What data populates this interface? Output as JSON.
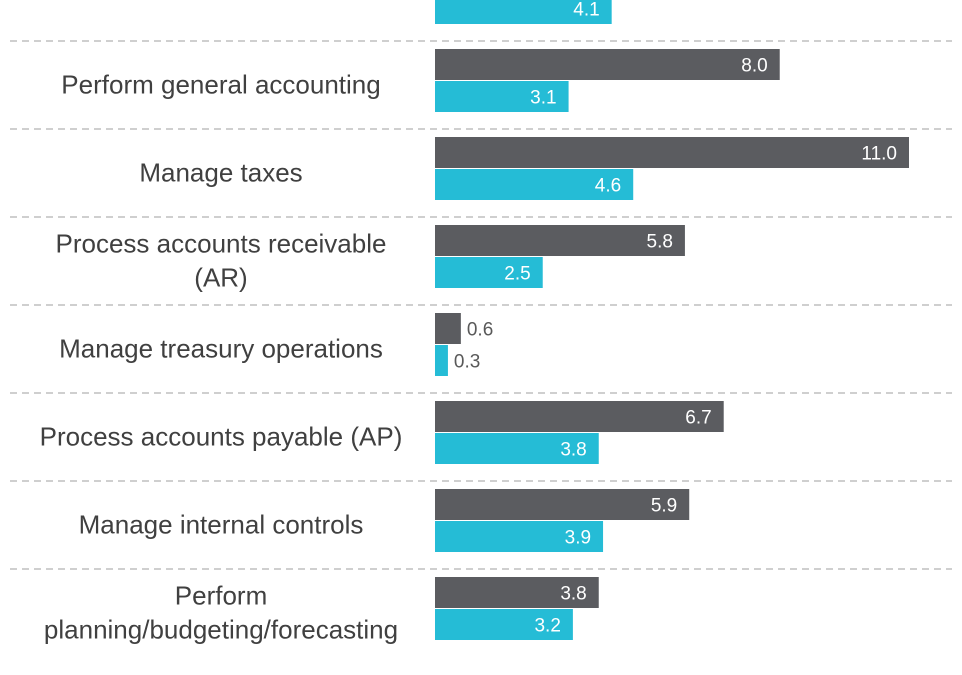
{
  "chart_data": {
    "type": "bar",
    "orientation": "horizontal",
    "title": "",
    "xlabel": "",
    "ylabel": "",
    "categories": [
      "",
      "Perform general accounting",
      "Manage taxes",
      "Process accounts receivable (AR)",
      "Manage treasury operations",
      "Process accounts payable (AP)",
      "Manage internal controls",
      "Perform planning/budgeting/forecasting"
    ],
    "category_lines": [
      [],
      [
        "Perform general accounting"
      ],
      [
        "Manage taxes"
      ],
      [
        "Process accounts receivable",
        "(AR)"
      ],
      [
        "Manage treasury operations"
      ],
      [
        "Process accounts payable (AP)"
      ],
      [
        "Manage internal controls"
      ],
      [
        "Perform",
        "planning/budgeting/forecasting"
      ]
    ],
    "series": [
      {
        "color": "#5b5c60",
        "values": [
          null,
          8.0,
          11.0,
          5.8,
          0.6,
          6.7,
          5.9,
          3.8
        ],
        "labels": [
          "",
          "8.0",
          "11.0",
          "5.8",
          "0.6",
          "6.7",
          "5.9",
          "3.8"
        ]
      },
      {
        "color": "#25bcd6",
        "values": [
          4.1,
          3.1,
          4.6,
          2.5,
          0.3,
          3.8,
          3.9,
          3.2
        ],
        "labels": [
          "4.1",
          "3.1",
          "4.6",
          "2.5",
          "0.3",
          "3.8",
          "3.9",
          "3.2"
        ]
      }
    ],
    "xlim": [
      0,
      11.0
    ],
    "legend": "none",
    "grid": false,
    "separators": "dashed"
  }
}
